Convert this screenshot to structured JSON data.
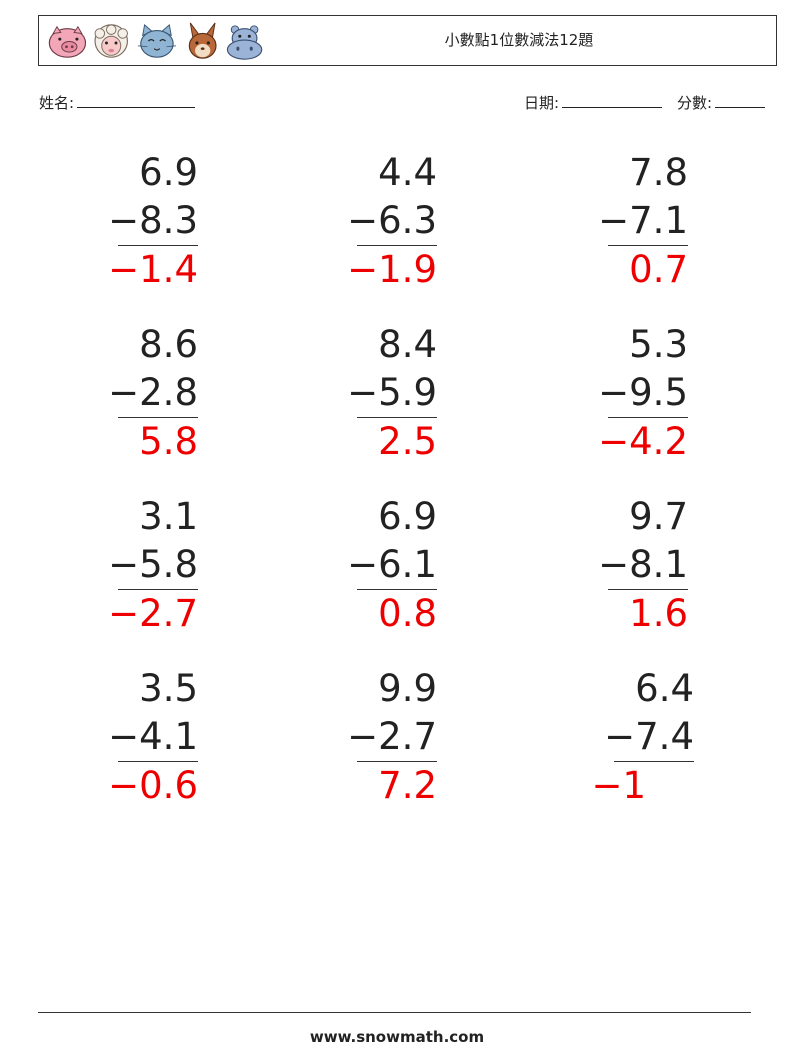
{
  "header": {
    "title": "小數點1位數減法12題",
    "icons": [
      "pig-face-icon",
      "sheep-face-icon",
      "cat-face-icon",
      "rabbit-face-icon",
      "hippo-face-icon"
    ]
  },
  "fields": {
    "name_label": "姓名:",
    "date_label": "日期:",
    "score_label": "分數:"
  },
  "problems": [
    {
      "a": "6.9",
      "b": "−8.3",
      "answer": "−1.4"
    },
    {
      "a": "4.4",
      "b": "−6.3",
      "answer": "−1.9"
    },
    {
      "a": "7.8",
      "b": "−7.1",
      "answer": "0.7"
    },
    {
      "a": "8.6",
      "b": "−2.8",
      "answer": "5.8"
    },
    {
      "a": "8.4",
      "b": "−5.9",
      "answer": "2.5"
    },
    {
      "a": "5.3",
      "b": "−9.5",
      "answer": "−4.2"
    },
    {
      "a": "3.1",
      "b": "−5.8",
      "answer": "−2.7"
    },
    {
      "a": "6.9",
      "b": "−6.1",
      "answer": "0.8"
    },
    {
      "a": "9.7",
      "b": "−8.1",
      "answer": "1.6"
    },
    {
      "a": "3.5",
      "b": "−4.1",
      "answer": "−0.6"
    },
    {
      "a": "9.9",
      "b": "−2.7",
      "answer": "7.2"
    },
    {
      "a": "6.4",
      "b": "−7.4",
      "answer": "−1"
    }
  ],
  "colors": {
    "answer": "#ee0000",
    "text": "#222222"
  },
  "footer": {
    "site": "www.snowmath.com"
  }
}
